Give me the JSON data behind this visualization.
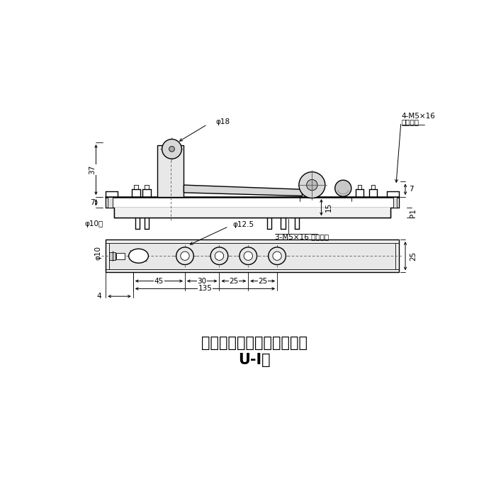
{
  "bg_color": "#ffffff",
  "line_color": "#1a1a1a",
  "title1": "移動調整型トップピボット",
  "title2": "U-Ⅰ型",
  "title_fontsize": 15,
  "dim_fontsize": 7.5,
  "anno_fontsize": 7.5,
  "labels": {
    "phi18": "φ18",
    "phi10hole": "φ10穴",
    "phi12_5": "φ12.5",
    "phi10": "φ10",
    "d37": "37",
    "d7a": "7",
    "d7b": "7",
    "d15": "15",
    "p1": "P1",
    "d25r": "25",
    "d45": "45",
    "d30": "30",
    "d25a": "25",
    "d25b": "25",
    "d135": "135",
    "d4": "4",
    "m5_16_4": "4-M5×16",
    "sara1": "皿小ネジ",
    "m5_16_3": "3-M5×16 皿小ネジ"
  }
}
